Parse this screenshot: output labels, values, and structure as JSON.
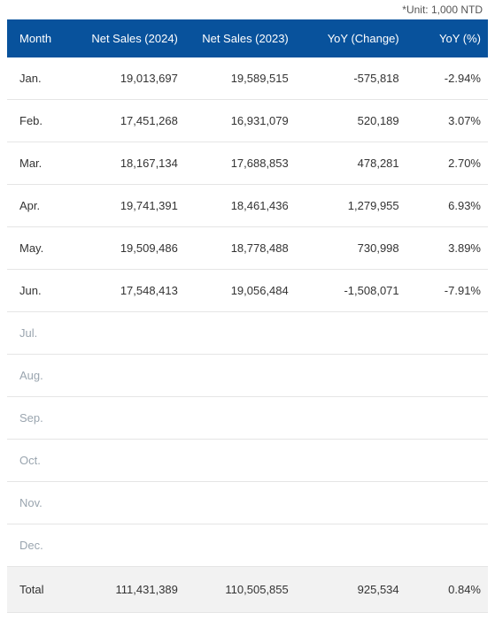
{
  "unit_note": "*Unit: 1,000 NTD",
  "table": {
    "type": "table",
    "header_bg": "#08529c",
    "header_text_color": "#ffffff",
    "row_border_color": "#e5e5e5",
    "empty_text_color": "#9aa5af",
    "total_bg": "#f2f2f2",
    "font_family": "Segoe UI, Arial, sans-serif",
    "header_fontsize": 13,
    "body_fontsize": 13,
    "columns": [
      {
        "key": "month",
        "label": "Month",
        "align": "left",
        "width_pct": 14
      },
      {
        "key": "sales_2024",
        "label": "Net Sales (2024)",
        "align": "right",
        "width_pct": 23
      },
      {
        "key": "sales_2023",
        "label": "Net Sales (2023)",
        "align": "right",
        "width_pct": 23
      },
      {
        "key": "yoy_change",
        "label": "YoY (Change)",
        "align": "right",
        "width_pct": 23
      },
      {
        "key": "yoy_pct",
        "label": "YoY (%)",
        "align": "right",
        "width_pct": 17
      }
    ],
    "rows": [
      {
        "month": "Jan.",
        "sales_2024": "19,013,697",
        "sales_2023": "19,589,515",
        "yoy_change": "-575,818",
        "yoy_pct": "-2.94%",
        "empty": false
      },
      {
        "month": "Feb.",
        "sales_2024": "17,451,268",
        "sales_2023": "16,931,079",
        "yoy_change": "520,189",
        "yoy_pct": "3.07%",
        "empty": false
      },
      {
        "month": "Mar.",
        "sales_2024": "18,167,134",
        "sales_2023": "17,688,853",
        "yoy_change": "478,281",
        "yoy_pct": "2.70%",
        "empty": false
      },
      {
        "month": "Apr.",
        "sales_2024": "19,741,391",
        "sales_2023": "18,461,436",
        "yoy_change": "1,279,955",
        "yoy_pct": "6.93%",
        "empty": false
      },
      {
        "month": "May.",
        "sales_2024": "19,509,486",
        "sales_2023": "18,778,488",
        "yoy_change": "730,998",
        "yoy_pct": "3.89%",
        "empty": false
      },
      {
        "month": "Jun.",
        "sales_2024": "17,548,413",
        "sales_2023": "19,056,484",
        "yoy_change": "-1,508,071",
        "yoy_pct": "-7.91%",
        "empty": false
      },
      {
        "month": "Jul.",
        "sales_2024": "",
        "sales_2023": "",
        "yoy_change": "",
        "yoy_pct": "",
        "empty": true
      },
      {
        "month": "Aug.",
        "sales_2024": "",
        "sales_2023": "",
        "yoy_change": "",
        "yoy_pct": "",
        "empty": true
      },
      {
        "month": "Sep.",
        "sales_2024": "",
        "sales_2023": "",
        "yoy_change": "",
        "yoy_pct": "",
        "empty": true
      },
      {
        "month": "Oct.",
        "sales_2024": "",
        "sales_2023": "",
        "yoy_change": "",
        "yoy_pct": "",
        "empty": true
      },
      {
        "month": "Nov.",
        "sales_2024": "",
        "sales_2023": "",
        "yoy_change": "",
        "yoy_pct": "",
        "empty": true
      },
      {
        "month": "Dec.",
        "sales_2024": "",
        "sales_2023": "",
        "yoy_change": "",
        "yoy_pct": "",
        "empty": true
      }
    ],
    "total": {
      "month": "Total",
      "sales_2024": "111,431,389",
      "sales_2023": "110,505,855",
      "yoy_change": "925,534",
      "yoy_pct": "0.84%"
    }
  }
}
